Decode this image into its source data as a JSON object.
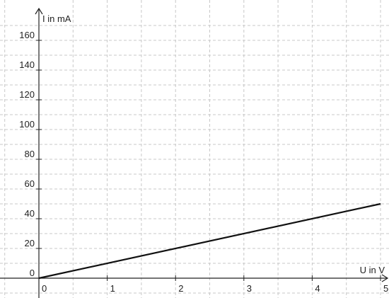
{
  "chart_data": {
    "type": "line",
    "xlabel": "U in V",
    "ylabel": "I in mA",
    "xlim": [
      -0.5,
      5
    ],
    "ylim": [
      -12,
      170
    ],
    "x_ticks": [
      0,
      1,
      2,
      3,
      4,
      5
    ],
    "y_ticks": [
      0,
      20,
      40,
      60,
      80,
      100,
      120,
      140,
      160
    ],
    "x_tick_labels": [
      "0",
      "1",
      "2",
      "3",
      "4",
      "5"
    ],
    "y_tick_labels": [
      "0",
      "20",
      "40",
      "60",
      "80",
      "100",
      "120",
      "140",
      "160"
    ],
    "grid": true,
    "series": [
      {
        "x": [
          0,
          5
        ],
        "y": [
          0,
          50
        ],
        "color": "#111111"
      }
    ]
  }
}
